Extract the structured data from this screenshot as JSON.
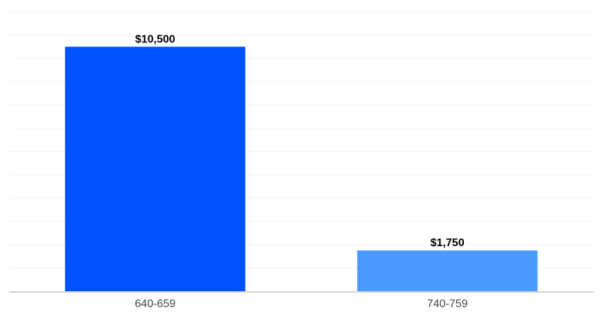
{
  "chart_data": {
    "type": "bar",
    "categories": [
      "640-659",
      "740-759"
    ],
    "values": [
      10500,
      1750
    ],
    "data_labels": [
      "$10,500",
      "$1,750"
    ],
    "colors": [
      "#0052ff",
      "#4a9aff"
    ],
    "title": "",
    "xlabel": "",
    "ylabel": "",
    "ylim": [
      0,
      12000
    ],
    "grid": true,
    "legend": "none"
  }
}
